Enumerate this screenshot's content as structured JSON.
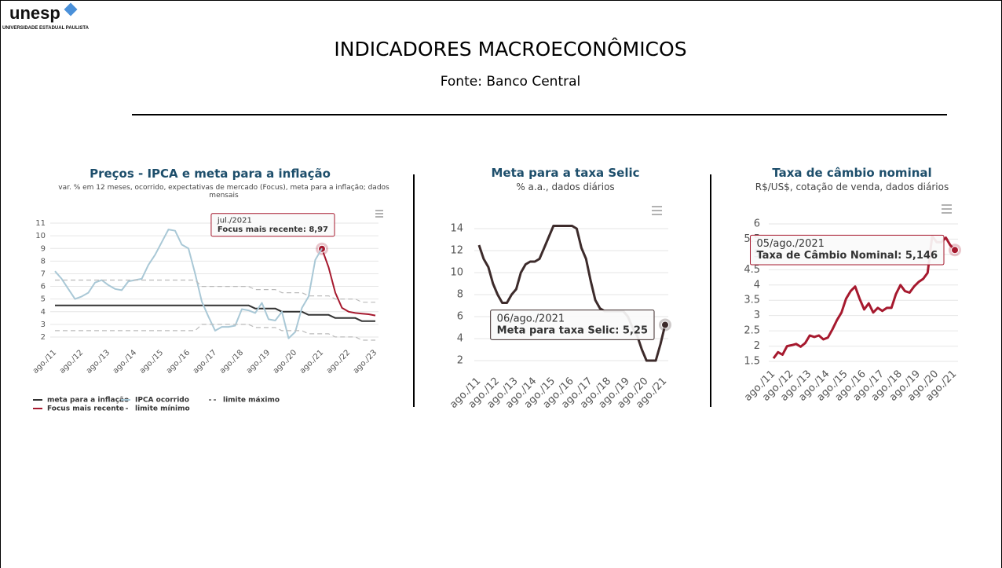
{
  "header": {
    "logo": "unesp",
    "logo_subtitle": "UNIVERSIDADE ESTADUAL PAULISTA",
    "title": "INDICADORES MACROECONÔMICOS",
    "source": "Fonte: Banco Central"
  },
  "chart_data": [
    {
      "type": "line",
      "title": "Preços - IPCA e meta para a inflação",
      "subtitle": "var. % em 12 meses, ocorrido, expectativas de mercado (Focus), meta para a inflação; dados mensais",
      "categories": [
        "ago./11",
        null,
        null,
        null,
        "ago./12",
        null,
        null,
        null,
        "ago./13",
        null,
        null,
        null,
        "ago./14",
        null,
        null,
        null,
        "ago./15",
        null,
        null,
        null,
        "ago./16",
        null,
        null,
        null,
        "ago./17",
        null,
        null,
        null,
        "ago./18",
        null,
        null,
        null,
        "ago./19",
        null,
        null,
        null,
        "ago./20",
        null,
        null,
        null,
        "ago./21",
        null,
        null,
        null,
        "ago./22",
        null,
        null,
        null,
        "ago./23"
      ],
      "series": [
        {
          "name": "meta para a inflação",
          "color": "#333333",
          "values": [
            4.5,
            4.5,
            4.5,
            4.5,
            4.5,
            4.5,
            4.5,
            4.5,
            4.5,
            4.5,
            4.5,
            4.5,
            4.5,
            4.5,
            4.5,
            4.5,
            4.5,
            4.5,
            4.5,
            4.5,
            4.5,
            4.5,
            4.5,
            4.5,
            4.5,
            4.5,
            4.5,
            4.5,
            4.5,
            4.5,
            4.25,
            4.25,
            4.25,
            4.25,
            4,
            4,
            4,
            4,
            3.75,
            3.75,
            3.75,
            3.75,
            3.5,
            3.5,
            3.5,
            3.5,
            3.25,
            3.25,
            3.25
          ]
        },
        {
          "name": "Focus mais recente",
          "color": "#a6192e",
          "values": [
            null,
            null,
            null,
            null,
            null,
            null,
            null,
            null,
            null,
            null,
            null,
            null,
            null,
            null,
            null,
            null,
            null,
            null,
            null,
            null,
            null,
            null,
            null,
            null,
            null,
            null,
            null,
            null,
            null,
            null,
            null,
            null,
            null,
            null,
            null,
            null,
            null,
            null,
            null,
            null,
            8.97,
            7.5,
            5.5,
            4.3,
            4.0,
            3.9,
            3.85,
            3.8,
            3.7
          ],
          "tooltip": {
            "title": "jul./2021",
            "text": "Focus mais recente: 8,97"
          }
        },
        {
          "name": "IPCA ocorrido",
          "color": "#a9c8d6",
          "values": [
            7.2,
            6.6,
            5.8,
            5.0,
            5.2,
            5.5,
            6.3,
            6.5,
            6.1,
            5.8,
            5.7,
            6.4,
            6.5,
            6.6,
            7.7,
            8.5,
            9.5,
            10.5,
            10.4,
            9.3,
            9.0,
            7.0,
            4.8,
            3.6,
            2.5,
            2.8,
            2.8,
            2.9,
            4.2,
            4.1,
            3.9,
            4.7,
            3.4,
            3.3,
            4.0,
            1.9,
            2.4,
            4.3,
            5.2,
            8.1,
            9.0,
            null,
            null,
            null,
            null,
            null,
            null,
            null,
            null
          ]
        },
        {
          "name": "limite mínimo",
          "color": "#bbbbbb",
          "dash": true,
          "values": [
            2.5,
            2.5,
            2.5,
            2.5,
            2.5,
            2.5,
            2.5,
            2.5,
            2.5,
            2.5,
            2.5,
            2.5,
            2.5,
            2.5,
            2.5,
            2.5,
            2.5,
            2.5,
            2.5,
            2.5,
            2.5,
            2.5,
            3,
            3,
            3,
            3,
            3,
            3,
            3,
            3,
            2.75,
            2.75,
            2.75,
            2.75,
            2.5,
            2.5,
            2.5,
            2.5,
            2.25,
            2.25,
            2.25,
            2.25,
            2,
            2,
            2,
            2,
            1.75,
            1.75,
            1.75
          ]
        },
        {
          "name": "limite máximo",
          "color": "#bbbbbb",
          "dash": true,
          "values": [
            6.5,
            6.5,
            6.5,
            6.5,
            6.5,
            6.5,
            6.5,
            6.5,
            6.5,
            6.5,
            6.5,
            6.5,
            6.5,
            6.5,
            6.5,
            6.5,
            6.5,
            6.5,
            6.5,
            6.5,
            6.5,
            6.5,
            6,
            6,
            6,
            6,
            6,
            6,
            6,
            6,
            5.75,
            5.75,
            5.75,
            5.75,
            5.5,
            5.5,
            5.5,
            5.5,
            5.25,
            5.25,
            5.25,
            5.25,
            5,
            5,
            5,
            5,
            4.75,
            4.75,
            4.75
          ]
        }
      ],
      "ylim": [
        1.5,
        11.5
      ],
      "yticks": [
        2,
        3,
        4,
        5,
        6,
        7,
        8,
        9,
        10,
        11
      ],
      "grid": true
    },
    {
      "type": "line",
      "title": "Meta para a taxa Selic",
      "subtitle": "% a.a., dados diários",
      "categories": [
        "ago./11",
        null,
        null,
        null,
        "ago./12",
        null,
        null,
        null,
        "ago./13",
        null,
        null,
        null,
        "ago./14",
        null,
        null,
        null,
        "ago./15",
        null,
        null,
        null,
        "ago./16",
        null,
        null,
        null,
        "ago./17",
        null,
        null,
        null,
        "ago./18",
        null,
        null,
        null,
        "ago./19",
        null,
        null,
        null,
        "ago./20",
        null,
        null,
        null,
        "ago./21"
      ],
      "series": [
        {
          "color": "#3d2b2b",
          "values": [
            12.5,
            11.25,
            10.5,
            9.0,
            8.0,
            7.25,
            7.25,
            8.0,
            8.5,
            10.0,
            10.75,
            11.0,
            11.0,
            11.25,
            12.25,
            13.25,
            14.25,
            14.25,
            14.25,
            14.25,
            14.25,
            14.0,
            12.25,
            11.25,
            9.25,
            7.5,
            6.75,
            6.5,
            6.5,
            6.5,
            6.5,
            6.5,
            6.0,
            5.0,
            4.25,
            3.0,
            2.0,
            2.0,
            2.0,
            3.5,
            5.25
          ],
          "tooltip": {
            "title": "06/ago./2021",
            "text": "Meta para taxa Selic: 5,25"
          }
        }
      ],
      "ylim": [
        1,
        15
      ],
      "yticks": [
        2,
        4,
        6,
        8,
        10,
        12,
        14
      ],
      "grid": true
    },
    {
      "type": "line",
      "title": "Taxa de câmbio nominal",
      "subtitle": "R$/US$, cotação de venda, dados diários",
      "categories": [
        "ago./11",
        null,
        null,
        null,
        "ago./12",
        null,
        null,
        null,
        "ago./13",
        null,
        null,
        null,
        "ago./14",
        null,
        null,
        null,
        "ago./15",
        null,
        null,
        null,
        "ago./16",
        null,
        null,
        null,
        "ago./17",
        null,
        null,
        null,
        "ago./18",
        null,
        null,
        null,
        "ago./19",
        null,
        null,
        null,
        "ago./20",
        null,
        null,
        null,
        "ago./21"
      ],
      "series": [
        {
          "color": "#a6192e",
          "values": [
            1.6,
            1.8,
            1.72,
            2.0,
            2.03,
            2.07,
            1.98,
            2.1,
            2.35,
            2.3,
            2.35,
            2.22,
            2.28,
            2.55,
            2.85,
            3.1,
            3.55,
            3.8,
            3.95,
            3.55,
            3.2,
            3.4,
            3.1,
            3.25,
            3.15,
            3.25,
            3.25,
            3.7,
            4.0,
            3.8,
            3.75,
            3.95,
            4.1,
            4.2,
            4.4,
            5.6,
            5.4,
            5.4,
            5.55,
            5.3,
            5.146
          ],
          "tooltip": {
            "title": "05/ago./2021",
            "text": "Taxa de Câmbio Nominal: 5,146"
          }
        }
      ],
      "ylim": [
        1.4,
        6.1
      ],
      "yticks": [
        1.5,
        2,
        2.5,
        3,
        3.5,
        4,
        4.5,
        5,
        5.5,
        6
      ],
      "grid": true
    }
  ]
}
